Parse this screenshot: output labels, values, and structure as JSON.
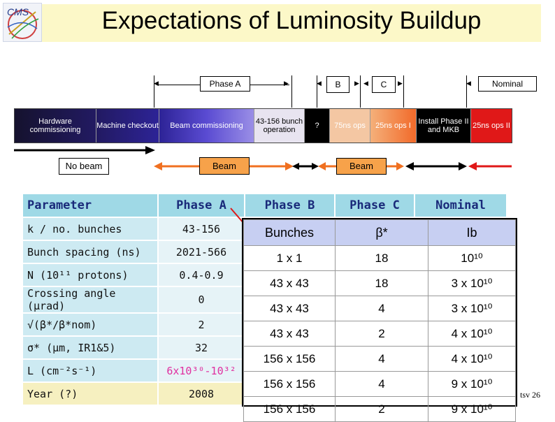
{
  "title": "Expectations of Luminosity Buildup",
  "logo_text": "CMS",
  "phase_header": {
    "phase_a": "Phase A",
    "b": "B",
    "c": "C",
    "nominal": "Nominal"
  },
  "timeline": [
    {
      "label": "Hardware commissioning"
    },
    {
      "label": "Machine checkout"
    },
    {
      "label": "Beam commissioning"
    },
    {
      "label": "43-156 bunch operation"
    },
    {
      "label": "?"
    },
    {
      "label": "75ns ops"
    },
    {
      "label": "25ns ops I"
    },
    {
      "label": "Install Phase II and MKB"
    },
    {
      "label": "25ns ops II"
    }
  ],
  "beam_row": {
    "no_beam": "No beam",
    "beam_a": "Beam",
    "beam_b": "Beam"
  },
  "params_table": {
    "headers": [
      "Parameter",
      "Phase A",
      "Phase B",
      "Phase C",
      "Nominal"
    ],
    "rows": [
      {
        "param": "k / no. bunches",
        "phase_a": "43-156"
      },
      {
        "param": "Bunch spacing (ns)",
        "phase_a": "2021-566"
      },
      {
        "param": "N (10¹¹ protons)",
        "phase_a": "0.4-0.9"
      },
      {
        "param": "Crossing angle (μrad)",
        "phase_a": "0"
      },
      {
        "param": "√(β*/β*nom)",
        "phase_a": "2"
      },
      {
        "param": "σ* (μm, IR1&5)",
        "phase_a": "32"
      },
      {
        "param": "L (cm⁻²s⁻¹)",
        "phase_a": "6x10³⁰-10³²"
      },
      {
        "param": "Year (?)",
        "phase_a": "2008"
      }
    ]
  },
  "bunch_table": {
    "headers": [
      "Bunches",
      "β*",
      "Ib"
    ],
    "rows": [
      {
        "bunches": "1 x 1",
        "beta": "18",
        "ib": "10¹⁰"
      },
      {
        "bunches": "43 x 43",
        "beta": "18",
        "ib": "3  x 10¹⁰"
      },
      {
        "bunches": "43 x 43",
        "beta": "4",
        "ib": "3  x 10¹⁰"
      },
      {
        "bunches": "43 x 43",
        "beta": "2",
        "ib": "4  x 10¹⁰"
      },
      {
        "bunches": "156 x 156",
        "beta": "4",
        "ib": "4  x 10¹⁰"
      },
      {
        "bunches": "156 x 156",
        "beta": "4",
        "ib": "9  x 10¹⁰"
      },
      {
        "bunches": "156 x 156",
        "beta": "2",
        "ib": "9  x 10¹⁰"
      }
    ]
  },
  "footer_text": "tsv 26"
}
